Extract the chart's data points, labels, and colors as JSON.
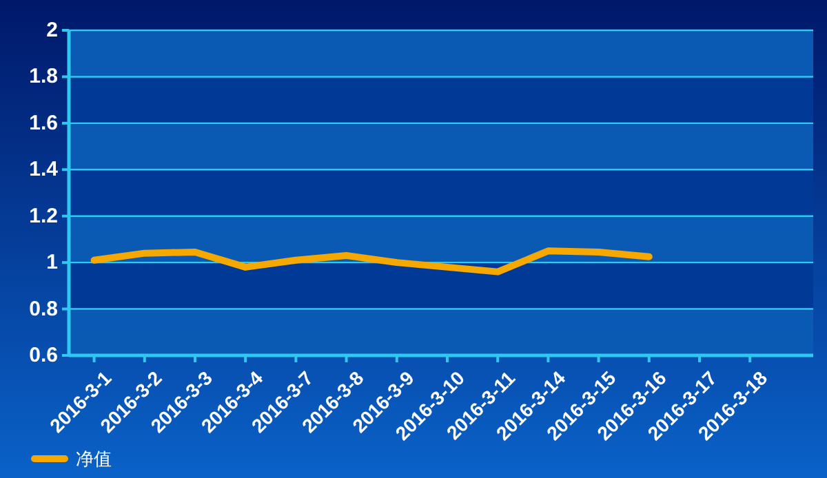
{
  "chart_data": {
    "type": "line",
    "categories": [
      "2016-3-1",
      "2016-3-2",
      "2016-3-3",
      "2016-3-4",
      "2016-3-7",
      "2016-3-8",
      "2016-3-9",
      "2016-3-10",
      "2016-3-11",
      "2016-3-14",
      "2016-3-15",
      "2016-3-16",
      "2016-3-17",
      "2016-3-18"
    ],
    "series": [
      {
        "name": "净值",
        "color": "#f5a800",
        "values": [
          1.01,
          1.04,
          1.045,
          0.98,
          1.01,
          1.03,
          1.0,
          0.98,
          0.96,
          1.05,
          1.045,
          1.025,
          null,
          null
        ]
      }
    ],
    "ylim": [
      0.6,
      2
    ],
    "yticks": [
      0.6,
      0.8,
      1,
      1.2,
      1.4,
      1.6,
      1.8,
      2
    ],
    "grid": "y",
    "legend": "bottom left",
    "marker": "none",
    "line_style": "solid"
  }
}
